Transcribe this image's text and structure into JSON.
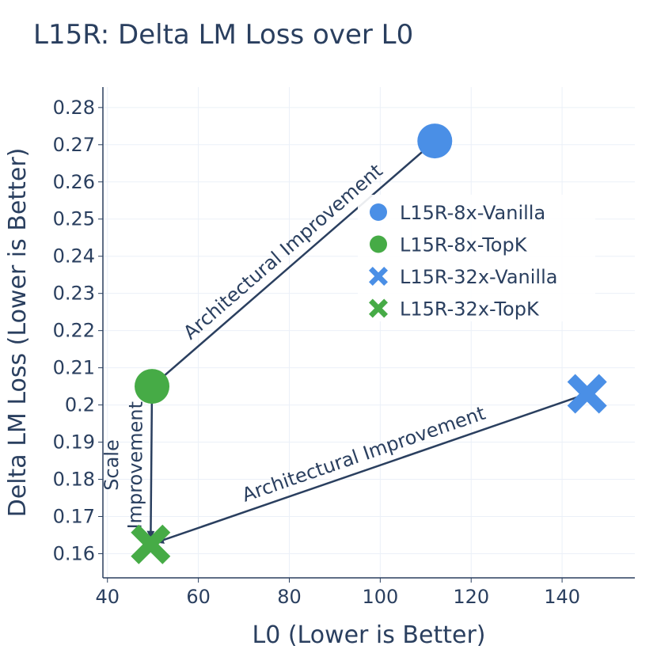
{
  "chart_data": {
    "type": "scatter",
    "title": "L15R: Delta LM Loss over L0",
    "xlabel": "L0 (Lower is Better)",
    "ylabel": "Delta LM Loss (Lower is Better)",
    "xlim": [
      39,
      156
    ],
    "ylim": [
      0.1535,
      0.2855
    ],
    "x_ticks": [
      40,
      60,
      80,
      100,
      120,
      140
    ],
    "y_ticks": [
      0.16,
      0.17,
      0.18,
      0.19,
      0.2,
      0.21,
      0.22,
      0.23,
      0.24,
      0.25,
      0.26,
      0.27,
      0.28
    ],
    "y_tick_labels": [
      "0.16",
      "0.17",
      "0.18",
      "0.19",
      "0.2",
      "0.21",
      "0.22",
      "0.23",
      "0.24",
      "0.25",
      "0.26",
      "0.27",
      "0.28"
    ],
    "grid": true,
    "legend_position": "center-right",
    "series": [
      {
        "name": "L15R-8x-Vanilla",
        "marker": "circle",
        "color": "#4a8fe6",
        "x": 112,
        "y": 0.271
      },
      {
        "name": "L15R-8x-TopK",
        "marker": "circle",
        "color": "#46ab46",
        "x": 49.8,
        "y": 0.205
      },
      {
        "name": "L15R-32x-Vanilla",
        "marker": "x",
        "color": "#4a8fe6",
        "x": 145.5,
        "y": 0.203
      },
      {
        "name": "L15R-32x-TopK",
        "marker": "x",
        "color": "#46ab46",
        "x": 49.5,
        "y": 0.1625
      }
    ],
    "annotations": [
      {
        "lines": [
          "Architectural Improvement"
        ],
        "from": [
          112,
          0.271
        ],
        "to": [
          49.8,
          0.205
        ]
      },
      {
        "lines": [
          "Scale",
          "Improvement"
        ],
        "from": [
          49.8,
          0.205
        ],
        "to": [
          49.5,
          0.1625
        ]
      },
      {
        "lines": [
          "Architectural Improvement"
        ],
        "from": [
          145.5,
          0.203
        ],
        "to": [
          49.5,
          0.1625
        ]
      }
    ]
  }
}
